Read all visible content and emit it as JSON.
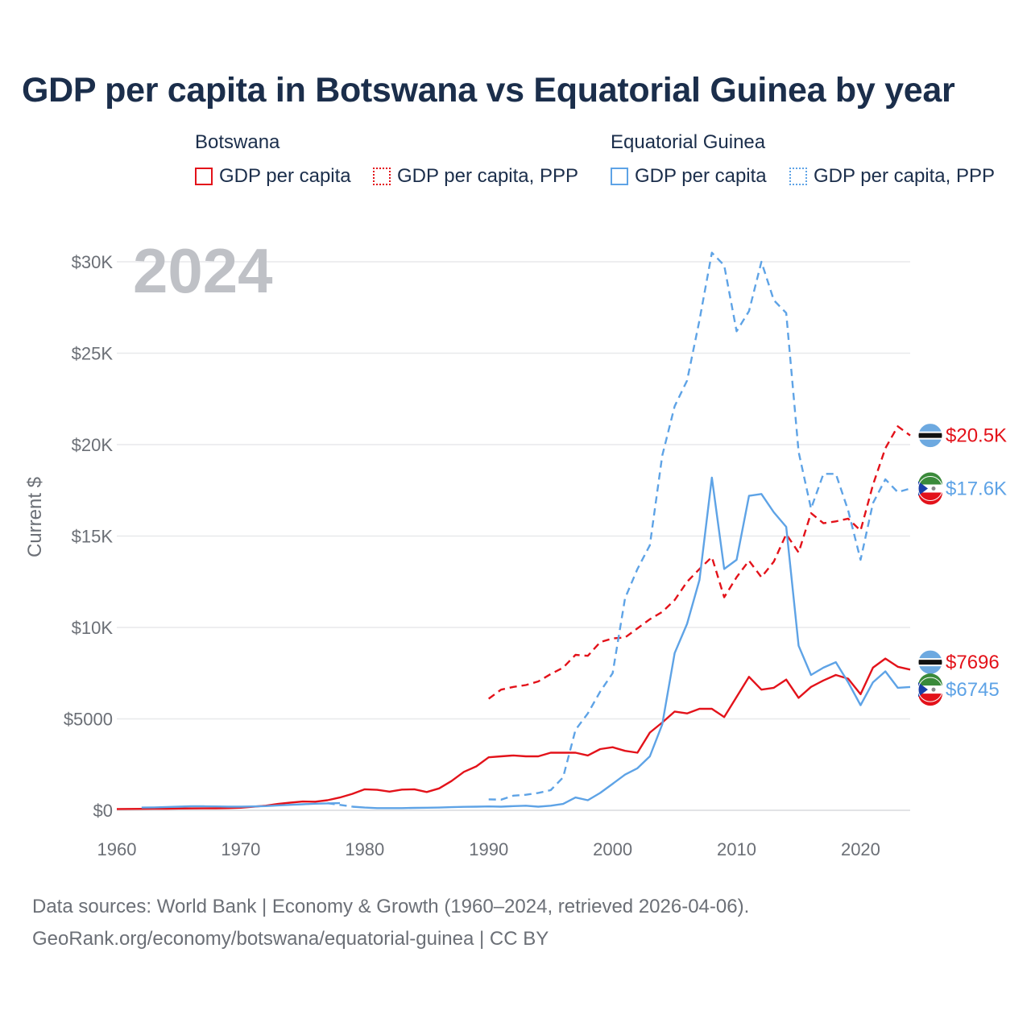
{
  "title": "GDP per capita in Botswana vs Equatorial Guinea by year",
  "legend": {
    "groups": [
      {
        "name": "Botswana",
        "color": "#e3121a",
        "items": [
          {
            "label": "GDP per capita",
            "style": "solid"
          },
          {
            "label": "GDP per capita, PPP",
            "style": "dotted"
          }
        ]
      },
      {
        "name": "Equatorial Guinea",
        "color": "#5ea3e6",
        "items": [
          {
            "label": "GDP per capita",
            "style": "solid"
          },
          {
            "label": "GDP per capita, PPP",
            "style": "dotted"
          }
        ]
      }
    ]
  },
  "sources": {
    "line1": "Data sources: World Bank | Economy & Growth (1960–2024, retrieved 2026-04-06).",
    "line2": "GeoRank.org/economy/botswana/equatorial-guinea | CC BY"
  },
  "chart_data": {
    "type": "line",
    "title": "GDP per capita in Botswana vs Equatorial Guinea by year",
    "current_year_label": "2024",
    "xlabel": "",
    "ylabel": "Current $",
    "xlim": [
      1960,
      2024
    ],
    "ylim": [
      0,
      30000
    ],
    "x_ticks": [
      "1960",
      "1970",
      "1980",
      "1990",
      "2000",
      "2010",
      "2020"
    ],
    "y_ticks": [
      {
        "value": 0,
        "label": "$0"
      },
      {
        "value": 5000,
        "label": "$5000"
      },
      {
        "value": 10000,
        "label": "$10K"
      },
      {
        "value": 15000,
        "label": "$15K"
      },
      {
        "value": 20000,
        "label": "$20K"
      },
      {
        "value": 25000,
        "label": "$25K"
      },
      {
        "value": 30000,
        "label": "$30K"
      }
    ],
    "series": [
      {
        "name": "Botswana GDP per capita",
        "country": "Botswana",
        "color": "#e3121a",
        "dash": "solid",
        "start_year": 1960,
        "values": [
          70,
          75,
          80,
          85,
          90,
          95,
          100,
          105,
          110,
          120,
          140,
          200,
          250,
          350,
          420,
          480,
          470,
          550,
          700,
          900,
          1150,
          1120,
          1020,
          1130,
          1150,
          1000,
          1200,
          1600,
          2100,
          2400,
          2900,
          2950,
          3000,
          2950,
          2950,
          3150,
          3150,
          3150,
          3000,
          3350,
          3450,
          3250,
          3150,
          4250,
          4800,
          5400,
          5300,
          5550,
          5550,
          5100,
          6200,
          7300,
          6600,
          6700,
          7150,
          6150,
          6750,
          7100,
          7400,
          7200,
          6350,
          7800,
          8300,
          7850,
          7696
        ],
        "end_label": "$7696"
      },
      {
        "name": "Botswana GDP per capita, PPP",
        "country": "Botswana",
        "color": "#e3121a",
        "dash": "dashed",
        "start_year": 1990,
        "values": [
          6100,
          6600,
          6750,
          6850,
          7050,
          7450,
          7800,
          8500,
          8450,
          9200,
          9400,
          9450,
          9950,
          10450,
          10850,
          11500,
          12500,
          13200,
          13850,
          11650,
          12750,
          13650,
          12750,
          13600,
          15100,
          14100,
          16250,
          15700,
          15800,
          15950,
          15300,
          17800,
          19800,
          21000,
          20500
        ],
        "end_label": "$20.5K"
      },
      {
        "name": "Equatorial Guinea GDP per capita",
        "country": "Equatorial Guinea",
        "color": "#5ea3e6",
        "dash": "solid",
        "start_year": 1962,
        "values": [
          150,
          160,
          180,
          200,
          220,
          220,
          210,
          200,
          200,
          210,
          230,
          270,
          300,
          330,
          360,
          380,
          390,
          null,
          null,
          null,
          null,
          null,
          null,
          null,
          null,
          null,
          null,
          null,
          null,
          null,
          null,
          null,
          null,
          null,
          null,
          null,
          null,
          null,
          null,
          null,
          null,
          null,
          null,
          null,
          null,
          null,
          null,
          null,
          null,
          null,
          null,
          null,
          null,
          null,
          null,
          null,
          null,
          null,
          null,
          null,
          null,
          null,
          null,
          null,
          null
        ],
        "values_note": "1962–1978",
        "end_label": ""
      },
      {
        "name": "Equatorial Guinea GDP per capita (1979–2024)",
        "country": "Equatorial Guinea",
        "color": "#5ea3e6",
        "dash": "solid",
        "start_year": 1979,
        "values": [
          200,
          150,
          120,
          120,
          120,
          130,
          140,
          150,
          170,
          190,
          200,
          210,
          200,
          230,
          250,
          200,
          250,
          350,
          700,
          550,
          950,
          1450,
          1950,
          2300,
          2950,
          4700,
          8600,
          10200,
          12600,
          18200,
          13200,
          13700,
          17200,
          17300,
          16300,
          15500,
          9000,
          7400,
          7800,
          8100,
          7000,
          5750,
          7000,
          7600,
          6700,
          6745
        ],
        "end_label": "$6745"
      },
      {
        "name": "Equatorial Guinea GDP per capita, PPP",
        "country": "Equatorial Guinea",
        "color": "#5ea3e6",
        "dash": "dashed",
        "start_year": 1990,
        "values": [
          600,
          580,
          800,
          850,
          950,
          1100,
          1800,
          4400,
          5300,
          6500,
          7500,
          11600,
          13200,
          14500,
          19400,
          22100,
          23500,
          26800,
          30500,
          29800,
          26200,
          27300,
          30000,
          27900,
          27200,
          19600,
          16500,
          18400,
          18400,
          16400,
          13700,
          16800,
          18100,
          17400,
          17600
        ],
        "end_label": "$17.6K"
      }
    ],
    "end_markers": [
      {
        "value_label": "$20.5K",
        "country": "Botswana",
        "color": "#e3121a",
        "flag": "botswana"
      },
      {
        "value_label": "$17.6K",
        "country": "Equatorial Guinea",
        "color": "#5ea3e6",
        "flag": "equatorial-guinea"
      },
      {
        "value_label": "$7696",
        "country": "Botswana",
        "color": "#e3121a",
        "flag": "botswana"
      },
      {
        "value_label": "$6745",
        "country": "Equatorial Guinea",
        "color": "#5ea3e6",
        "flag": "equatorial-guinea"
      }
    ]
  }
}
